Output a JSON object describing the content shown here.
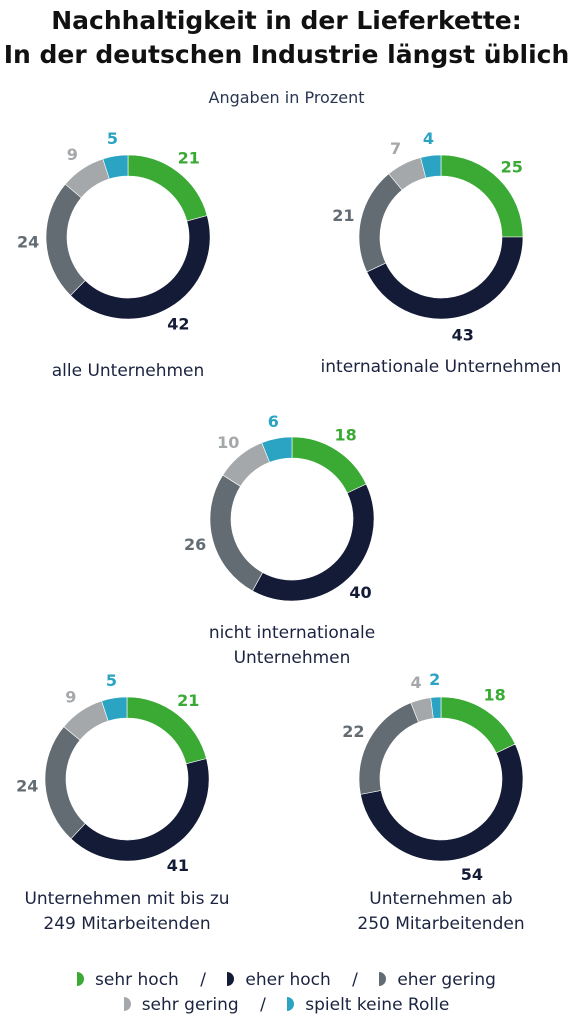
{
  "header": {
    "title_line1": "Nachhaltigkeit in der Lieferkette:",
    "title_line2": "In der deutschen Industrie längst üblich",
    "subtitle": "Angaben in Prozent"
  },
  "colors": {
    "sehr_hoch": "#3aaa35",
    "eher_hoch": "#141b36",
    "eher_gering": "#636c73",
    "sehr_gering": "#a5a8aa",
    "spielt_keine_rolle": "#2aa4c2"
  },
  "legend": [
    {
      "key": "sehr_hoch",
      "label": "sehr hoch"
    },
    {
      "key": "eher_hoch",
      "label": "eher hoch"
    },
    {
      "key": "eher_gering",
      "label": "eher gering"
    },
    {
      "key": "sehr_gering",
      "label": "sehr gering"
    },
    {
      "key": "spielt_keine_rolle",
      "label": "spielt keine Rolle"
    }
  ],
  "legend_separator": "/",
  "chart_data": [
    {
      "type": "pie",
      "label_lines": [
        "alle Unternehmen"
      ],
      "categories": [
        "sehr hoch",
        "eher hoch",
        "eher gering",
        "sehr gering",
        "spielt keine Rolle"
      ],
      "values": [
        21,
        42,
        24,
        9,
        5
      ]
    },
    {
      "type": "pie",
      "label_lines": [
        "internationale Unternehmen"
      ],
      "categories": [
        "sehr hoch",
        "eher hoch",
        "eher gering",
        "sehr gering",
        "spielt keine Rolle"
      ],
      "values": [
        25,
        43,
        21,
        7,
        4
      ]
    },
    {
      "type": "pie",
      "label_lines": [
        "nicht internationale",
        "Unternehmen"
      ],
      "categories": [
        "sehr hoch",
        "eher hoch",
        "eher gering",
        "sehr gering",
        "spielt keine Rolle"
      ],
      "values": [
        18,
        40,
        26,
        10,
        6
      ]
    },
    {
      "type": "pie",
      "label_lines": [
        "Unternehmen mit bis zu",
        "249 Mitarbeitenden"
      ],
      "categories": [
        "sehr hoch",
        "eher hoch",
        "eher gering",
        "sehr gering",
        "spielt keine Rolle"
      ],
      "values": [
        21,
        41,
        24,
        9,
        5
      ]
    },
    {
      "type": "pie",
      "label_lines": [
        "Unternehmen ab",
        "250 Mitarbeitenden"
      ],
      "categories": [
        "sehr hoch",
        "eher hoch",
        "eher gering",
        "sehr gering",
        "spielt keine Rolle"
      ],
      "values": [
        18,
        54,
        22,
        4,
        2
      ]
    }
  ]
}
